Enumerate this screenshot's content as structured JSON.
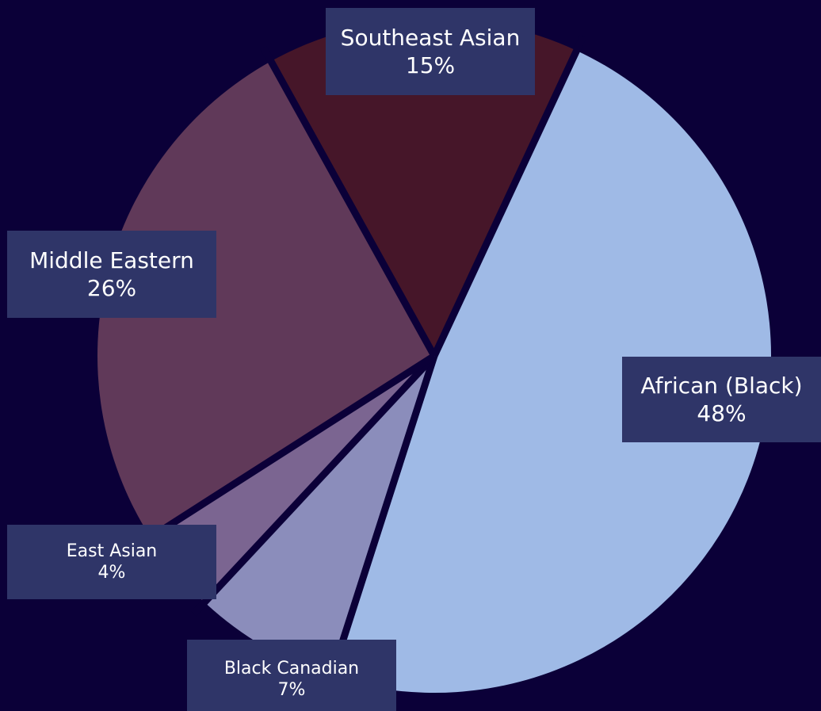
{
  "chart_data": {
    "type": "pie",
    "slices": [
      {
        "label": "African (Black)",
        "value": 48,
        "value_label": "48%",
        "color": "#9fbae6"
      },
      {
        "label": "Black Canadian",
        "value": 7,
        "value_label": "7%",
        "color": "#8b8dbb"
      },
      {
        "label": "East Asian",
        "value": 4,
        "value_label": "4%",
        "color": "#7b6591"
      },
      {
        "label": "Middle Eastern",
        "value": 26,
        "value_label": "26%",
        "color": "#603959"
      },
      {
        "label": "Southeast Asian",
        "value": 15,
        "value_label": "15%",
        "color": "#461629"
      }
    ],
    "background_color": "#0b0038",
    "label_box_color": "#2f3568",
    "separator_color": "#0b0038"
  }
}
